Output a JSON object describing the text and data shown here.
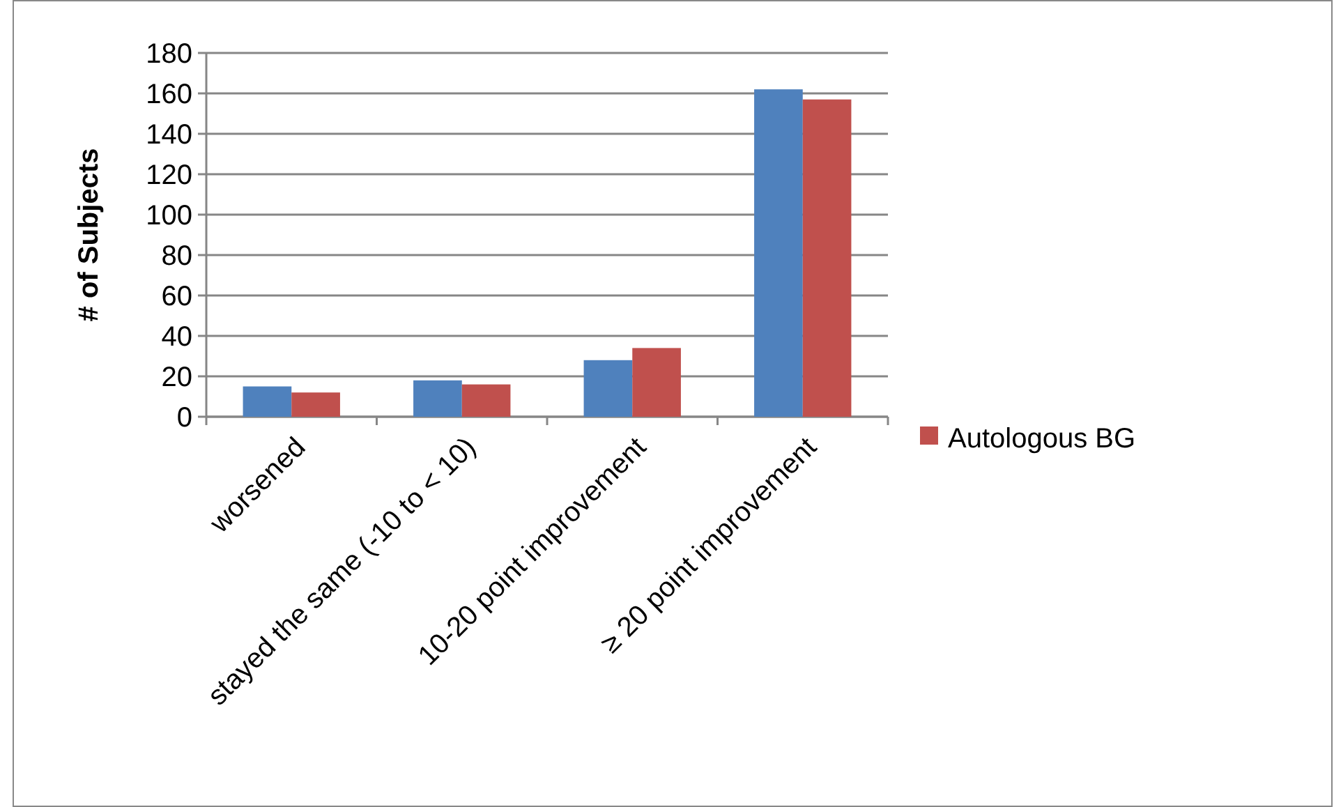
{
  "chart_data": {
    "type": "bar",
    "ylabel": "# of Subjects",
    "categories": [
      "worsened",
      "stayed the same (-10 to  < 10)",
      "10-20 point improvement",
      "≥ 20 point improvement"
    ],
    "series": [
      {
        "color": "#4f81bd",
        "values": [
          15,
          18,
          28,
          162
        ]
      },
      {
        "name": "Autologous BG",
        "color": "#c0504d",
        "values": [
          12,
          16,
          34,
          157
        ]
      }
    ],
    "ylim": [
      0,
      180
    ],
    "yticks": [
      0,
      20,
      40,
      60,
      80,
      100,
      120,
      140,
      160,
      180
    ],
    "grid": "y",
    "legend": "right"
  }
}
